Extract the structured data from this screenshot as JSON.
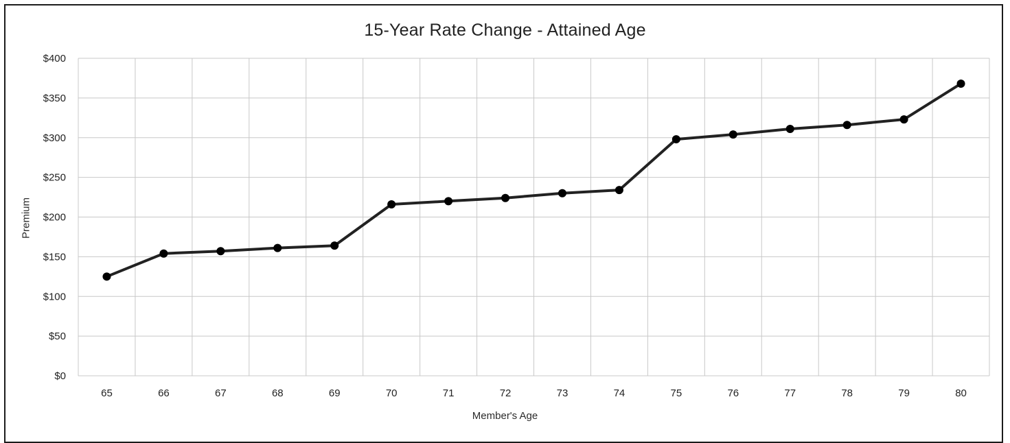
{
  "chart_data": {
    "type": "line",
    "title": "15-Year Rate Change - Attained Age",
    "xlabel": "Member's Age",
    "ylabel": "Premium",
    "categories": [
      "65",
      "66",
      "67",
      "68",
      "69",
      "70",
      "71",
      "72",
      "73",
      "74",
      "75",
      "76",
      "77",
      "78",
      "79",
      "80"
    ],
    "series": [
      {
        "values": [
          125,
          154,
          157,
          161,
          164,
          216,
          220,
          224,
          230,
          234,
          298,
          304,
          311,
          316,
          323,
          368
        ]
      }
    ],
    "ylim": [
      0,
      400
    ],
    "yticks": [
      0,
      50,
      100,
      150,
      200,
      250,
      300,
      350,
      400
    ],
    "ytick_labels": [
      "$0",
      "$50",
      "$100",
      "$150",
      "$200",
      "$250",
      "$300",
      "$350",
      "$400"
    ],
    "grid": true,
    "legend": "none",
    "colors": {
      "line": "#222222",
      "marker": "#000000",
      "grid": "#c8c8c8",
      "axis": "#bfbfbf",
      "text": "#222222"
    }
  }
}
